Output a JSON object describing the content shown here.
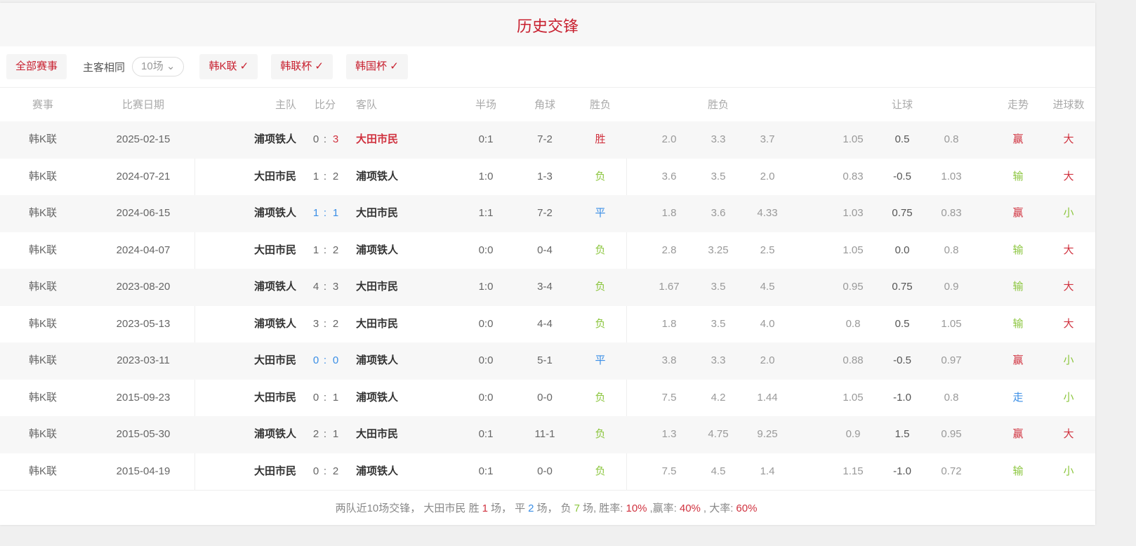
{
  "title": "历史交锋",
  "filters": {
    "all": "全部赛事",
    "same_venue": "主客相同",
    "count": "10场",
    "leagues": [
      "韩K联",
      "韩联杯",
      "韩国杯"
    ]
  },
  "headers": {
    "league": "赛事",
    "date": "比赛日期",
    "home": "主队",
    "score": "比分",
    "away": "客队",
    "half": "半场",
    "corner": "角球",
    "result": "胜负",
    "odds": "胜负",
    "handicap": "让球",
    "trend": "走势",
    "goals": "进球数"
  },
  "colors": {
    "red": "#d0323f",
    "green": "#8cc63f",
    "blue": "#3a8ee6"
  },
  "rows": [
    {
      "league": "韩K联",
      "date": "2025-02-15",
      "home": "浦项铁人",
      "hs": "0",
      "as": "3",
      "away": "大田市民",
      "half": "0:1",
      "corner": "7-2",
      "result": "胜",
      "o1": "2.0",
      "o2": "3.3",
      "o3": "3.7",
      "h1": "1.05",
      "h2": "0.5",
      "h3": "0.8",
      "trend": "赢",
      "goals": "大"
    },
    {
      "league": "韩K联",
      "date": "2024-07-21",
      "home": "大田市民",
      "hs": "1",
      "as": "2",
      "away": "浦项铁人",
      "half": "1:0",
      "corner": "1-3",
      "result": "负",
      "o1": "3.6",
      "o2": "3.5",
      "o3": "2.0",
      "h1": "0.83",
      "h2": "-0.5",
      "h3": "1.03",
      "trend": "输",
      "goals": "大"
    },
    {
      "league": "韩K联",
      "date": "2024-06-15",
      "home": "浦项铁人",
      "hs": "1",
      "as": "1",
      "away": "大田市民",
      "half": "1:1",
      "corner": "7-2",
      "result": "平",
      "o1": "1.8",
      "o2": "3.6",
      "o3": "4.33",
      "h1": "1.03",
      "h2": "0.75",
      "h3": "0.83",
      "trend": "赢",
      "goals": "小"
    },
    {
      "league": "韩K联",
      "date": "2024-04-07",
      "home": "大田市民",
      "hs": "1",
      "as": "2",
      "away": "浦项铁人",
      "half": "0:0",
      "corner": "0-4",
      "result": "负",
      "o1": "2.8",
      "o2": "3.25",
      "o3": "2.5",
      "h1": "1.05",
      "h2": "0.0",
      "h3": "0.8",
      "trend": "输",
      "goals": "大"
    },
    {
      "league": "韩K联",
      "date": "2023-08-20",
      "home": "浦项铁人",
      "hs": "4",
      "as": "3",
      "away": "大田市民",
      "half": "1:0",
      "corner": "3-4",
      "result": "负",
      "o1": "1.67",
      "o2": "3.5",
      "o3": "4.5",
      "h1": "0.95",
      "h2": "0.75",
      "h3": "0.9",
      "trend": "输",
      "goals": "大"
    },
    {
      "league": "韩K联",
      "date": "2023-05-13",
      "home": "浦项铁人",
      "hs": "3",
      "as": "2",
      "away": "大田市民",
      "half": "0:0",
      "corner": "4-4",
      "result": "负",
      "o1": "1.8",
      "o2": "3.5",
      "o3": "4.0",
      "h1": "0.8",
      "h2": "0.5",
      "h3": "1.05",
      "trend": "输",
      "goals": "大"
    },
    {
      "league": "韩K联",
      "date": "2023-03-11",
      "home": "大田市民",
      "hs": "0",
      "as": "0",
      "away": "浦项铁人",
      "half": "0:0",
      "corner": "5-1",
      "result": "平",
      "o1": "3.8",
      "o2": "3.3",
      "o3": "2.0",
      "h1": "0.88",
      "h2": "-0.5",
      "h3": "0.97",
      "trend": "赢",
      "goals": "小"
    },
    {
      "league": "韩K联",
      "date": "2015-09-23",
      "home": "大田市民",
      "hs": "0",
      "as": "1",
      "away": "浦项铁人",
      "half": "0:0",
      "corner": "0-0",
      "result": "负",
      "o1": "7.5",
      "o2": "4.2",
      "o3": "1.44",
      "h1": "1.05",
      "h2": "-1.0",
      "h3": "0.8",
      "trend": "走",
      "goals": "小"
    },
    {
      "league": "韩K联",
      "date": "2015-05-30",
      "home": "浦项铁人",
      "hs": "2",
      "as": "1",
      "away": "大田市民",
      "half": "0:1",
      "corner": "11-1",
      "result": "负",
      "o1": "1.3",
      "o2": "4.75",
      "o3": "9.25",
      "h1": "0.9",
      "h2": "1.5",
      "h3": "0.95",
      "trend": "赢",
      "goals": "大"
    },
    {
      "league": "韩K联",
      "date": "2015-04-19",
      "home": "大田市民",
      "hs": "0",
      "as": "2",
      "away": "浦项铁人",
      "half": "0:1",
      "corner": "0-0",
      "result": "负",
      "o1": "7.5",
      "o2": "4.5",
      "o3": "1.4",
      "h1": "1.15",
      "h2": "-1.0",
      "h3": "0.72",
      "trend": "输",
      "goals": "小"
    }
  ],
  "summary": {
    "prefix": "两队近10场交锋，",
    "team": "大田市民 胜",
    "wins": "1",
    "t1": "场，  平",
    "draws": "2",
    "t2": "场，  负",
    "losses": "7",
    "t3": "场, 胜率:",
    "win_rate": "10%",
    "t4": ",赢率:",
    "cover_rate": "40%",
    "t5": ", 大率:",
    "over_rate": "60%"
  }
}
